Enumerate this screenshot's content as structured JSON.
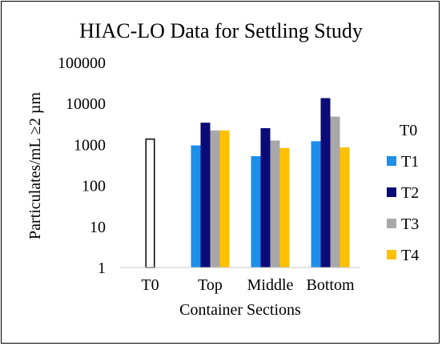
{
  "chart_data": {
    "type": "bar",
    "title": "HIAC-LO Data for Settling Study",
    "xlabel": "Container Sections",
    "ylabel": "Particulates/mL ≥2 µm",
    "yscale": "log",
    "ylim": [
      1,
      100000
    ],
    "yticks": [
      "1",
      "10",
      "100",
      "1000",
      "10000",
      "100000"
    ],
    "categories": [
      "T0",
      "Top",
      "Middle",
      "Bottom"
    ],
    "series": [
      {
        "name": "T0",
        "color": "#ffffff",
        "outline": "#000000",
        "values": [
          1400,
          null,
          null,
          null
        ]
      },
      {
        "name": "T1",
        "color": "#1c8fe8",
        "values": [
          null,
          950,
          520,
          1200
        ]
      },
      {
        "name": "T2",
        "color": "#0a0a78",
        "values": [
          null,
          3400,
          2500,
          13500
        ]
      },
      {
        "name": "T3",
        "color": "#a8a8a8",
        "values": [
          null,
          2200,
          1250,
          4800
        ]
      },
      {
        "name": "T4",
        "color": "#ffc000",
        "values": [
          null,
          2200,
          820,
          850
        ]
      }
    ],
    "legend": "right",
    "grid": false
  }
}
